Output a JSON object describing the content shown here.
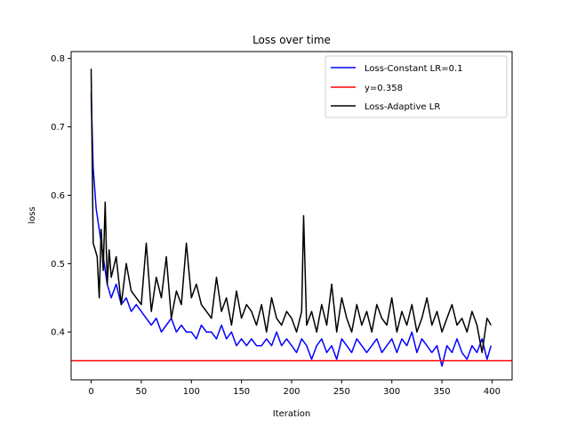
{
  "chart_data": {
    "type": "line",
    "title": "Loss over time",
    "xlabel": "Iteration",
    "ylabel": "loss",
    "xlim": [
      -20,
      420
    ],
    "ylim": [
      0.33,
      0.81
    ],
    "xticks": [
      0,
      50,
      100,
      150,
      200,
      250,
      300,
      350,
      400
    ],
    "yticks": [
      0.4,
      0.5,
      0.6,
      0.7,
      0.8
    ],
    "grid": false,
    "legend_position": "top-right",
    "series": [
      {
        "name": "Loss-Constant LR=0.1",
        "color": "#0000ff",
        "x": [
          0,
          2,
          5,
          8,
          12,
          16,
          20,
          25,
          30,
          35,
          40,
          45,
          50,
          55,
          60,
          65,
          70,
          75,
          80,
          85,
          90,
          95,
          100,
          105,
          110,
          115,
          120,
          125,
          130,
          135,
          140,
          145,
          150,
          155,
          160,
          165,
          170,
          175,
          180,
          185,
          190,
          195,
          200,
          205,
          210,
          215,
          220,
          225,
          230,
          235,
          240,
          245,
          250,
          255,
          260,
          265,
          270,
          275,
          280,
          285,
          290,
          295,
          300,
          305,
          310,
          315,
          320,
          325,
          330,
          335,
          340,
          345,
          350,
          355,
          360,
          365,
          370,
          375,
          380,
          385,
          390,
          395,
          399
        ],
        "y": [
          0.75,
          0.64,
          0.58,
          0.55,
          0.51,
          0.47,
          0.45,
          0.47,
          0.44,
          0.45,
          0.43,
          0.44,
          0.43,
          0.42,
          0.41,
          0.42,
          0.4,
          0.41,
          0.42,
          0.4,
          0.41,
          0.4,
          0.4,
          0.39,
          0.41,
          0.4,
          0.4,
          0.39,
          0.41,
          0.39,
          0.4,
          0.38,
          0.39,
          0.38,
          0.39,
          0.38,
          0.38,
          0.39,
          0.38,
          0.4,
          0.38,
          0.39,
          0.38,
          0.37,
          0.39,
          0.38,
          0.36,
          0.38,
          0.39,
          0.37,
          0.38,
          0.36,
          0.39,
          0.38,
          0.37,
          0.39,
          0.38,
          0.37,
          0.38,
          0.39,
          0.37,
          0.38,
          0.39,
          0.37,
          0.39,
          0.38,
          0.4,
          0.37,
          0.39,
          0.38,
          0.37,
          0.38,
          0.35,
          0.38,
          0.37,
          0.39,
          0.37,
          0.36,
          0.38,
          0.37,
          0.39,
          0.36,
          0.38
        ]
      },
      {
        "name": "y=0.358",
        "color": "#ff0000",
        "x": [
          -20,
          420
        ],
        "y": [
          0.358,
          0.358
        ]
      },
      {
        "name": "Loss-Adaptive LR",
        "color": "#000000",
        "x": [
          0,
          2,
          4,
          6,
          8,
          10,
          12,
          14,
          16,
          18,
          20,
          25,
          30,
          35,
          40,
          45,
          50,
          55,
          60,
          65,
          70,
          75,
          80,
          85,
          90,
          95,
          100,
          105,
          110,
          115,
          120,
          125,
          130,
          135,
          140,
          145,
          150,
          155,
          160,
          165,
          170,
          175,
          180,
          185,
          190,
          195,
          200,
          205,
          210,
          212,
          215,
          220,
          225,
          230,
          235,
          240,
          245,
          250,
          255,
          260,
          265,
          270,
          275,
          280,
          285,
          290,
          295,
          300,
          305,
          310,
          315,
          320,
          325,
          330,
          335,
          340,
          345,
          350,
          355,
          360,
          365,
          370,
          375,
          380,
          385,
          390,
          395,
          399
        ],
        "y": [
          0.785,
          0.53,
          0.52,
          0.51,
          0.45,
          0.55,
          0.49,
          0.59,
          0.47,
          0.52,
          0.48,
          0.51,
          0.44,
          0.5,
          0.46,
          0.45,
          0.44,
          0.53,
          0.43,
          0.48,
          0.45,
          0.51,
          0.42,
          0.46,
          0.44,
          0.53,
          0.45,
          0.47,
          0.44,
          0.43,
          0.42,
          0.48,
          0.43,
          0.45,
          0.41,
          0.46,
          0.42,
          0.44,
          0.43,
          0.41,
          0.44,
          0.4,
          0.45,
          0.42,
          0.41,
          0.43,
          0.42,
          0.4,
          0.43,
          0.57,
          0.41,
          0.43,
          0.4,
          0.44,
          0.41,
          0.47,
          0.4,
          0.45,
          0.42,
          0.4,
          0.44,
          0.41,
          0.43,
          0.4,
          0.44,
          0.42,
          0.41,
          0.45,
          0.4,
          0.43,
          0.41,
          0.44,
          0.4,
          0.42,
          0.45,
          0.41,
          0.43,
          0.4,
          0.42,
          0.44,
          0.41,
          0.42,
          0.4,
          0.43,
          0.41,
          0.37,
          0.42,
          0.41
        ]
      }
    ]
  }
}
